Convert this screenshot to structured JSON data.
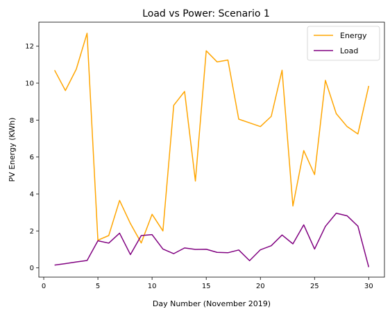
{
  "chart_data": {
    "type": "line",
    "title": "Load vs Power: Scenario 1",
    "xlabel": "Day Number (November 2019)",
    "ylabel": "PV Energy (KWh)",
    "xlim": [
      -0.45,
      31.45
    ],
    "ylim": [
      -0.5,
      13.3
    ],
    "xticks": [
      0,
      5,
      10,
      15,
      20,
      25,
      30
    ],
    "yticks": [
      0,
      2,
      4,
      6,
      8,
      10,
      12
    ],
    "legend": "top-right",
    "grid": false,
    "series": [
      {
        "name": "Energy",
        "color": "#ffa500",
        "x": [
          1,
          2,
          3,
          4,
          5,
          6,
          7,
          8,
          9,
          10,
          11,
          12,
          13,
          14,
          15,
          16,
          17,
          18,
          19,
          20,
          21,
          22,
          23,
          24,
          25,
          26,
          27,
          28,
          29,
          30
        ],
        "y": [
          10.7,
          9.6,
          10.75,
          12.7,
          1.5,
          1.75,
          3.65,
          2.4,
          1.35,
          2.9,
          2.0,
          8.8,
          9.55,
          4.7,
          11.75,
          11.15,
          11.25,
          8.05,
          7.85,
          7.65,
          8.2,
          10.7,
          3.35,
          6.35,
          5.05,
          10.15,
          8.35,
          7.65,
          7.25,
          9.85
        ]
      },
      {
        "name": "Load",
        "color": "#800080",
        "x": [
          1,
          2,
          3,
          4,
          5,
          6,
          7,
          8,
          9,
          10,
          11,
          12,
          13,
          14,
          15,
          16,
          17,
          18,
          19,
          20,
          21,
          22,
          23,
          24,
          25,
          26,
          27,
          28,
          29,
          30
        ],
        "y": [
          0.15,
          0.23,
          0.32,
          0.4,
          1.47,
          1.34,
          1.88,
          0.72,
          1.75,
          1.8,
          1.02,
          0.77,
          1.08,
          1.0,
          1.01,
          0.84,
          0.82,
          0.97,
          0.39,
          0.98,
          1.2,
          1.78,
          1.3,
          2.33,
          1.02,
          2.25,
          2.96,
          2.82,
          2.26,
          0.04
        ]
      }
    ]
  }
}
